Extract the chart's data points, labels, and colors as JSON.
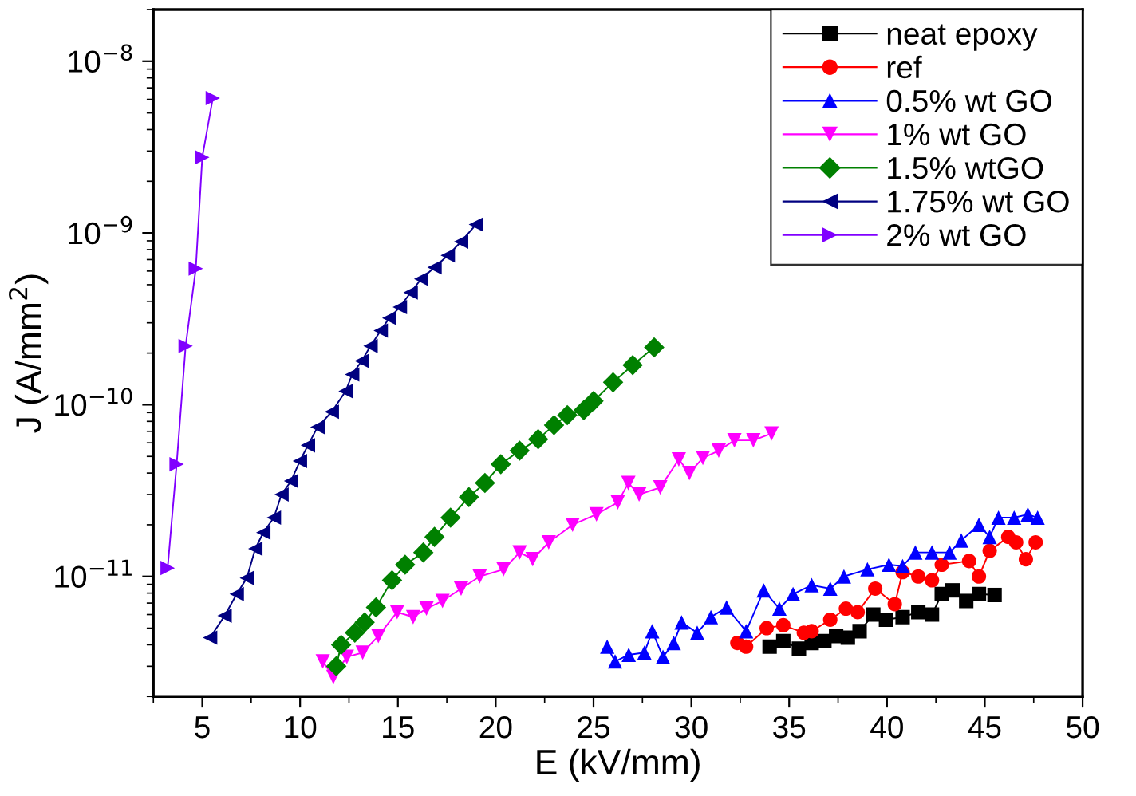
{
  "chart_data": {
    "type": "line",
    "xlabel": "E (kV/mm)",
    "ylabel": "J (A/mm$^{2}$)",
    "log": "y",
    "xlim": [
      2.5,
      50
    ],
    "ylim": [
      2e-12,
      2e-08
    ],
    "xticks": [
      5,
      10,
      15,
      20,
      25,
      30,
      35,
      40,
      45,
      50
    ],
    "yticks": [
      {
        "value": 1e-11,
        "label": "10$^{−11}$"
      },
      {
        "value": 1e-10,
        "label": "10$^{−10}$"
      },
      {
        "value": 1e-09,
        "label": "10$^{−9}$"
      },
      {
        "value": 1e-08,
        "label": "10$^{−8}$"
      }
    ],
    "grid": false,
    "legend": "top right",
    "line_style": "solid",
    "series": [
      {
        "name": "neat epoxy",
        "color": "#000000",
        "marker": "square",
        "x": [
          34.0,
          34.7,
          35.5,
          36.15,
          36.8,
          37.4,
          38.0,
          38.6,
          39.3,
          39.95,
          40.8,
          41.6,
          42.3,
          42.8,
          43.35,
          44.05,
          44.7,
          45.5
        ],
        "values": [
          3.9e-12,
          4.2e-12,
          3.8e-12,
          4.1e-12,
          4.2e-12,
          4.5e-12,
          4.4e-12,
          4.8e-12,
          6e-12,
          5.6e-12,
          5.8e-12,
          6.2e-12,
          6e-12,
          7.9e-12,
          8.3e-12,
          7.2e-12,
          7.9e-12,
          7.8e-12
        ]
      },
      {
        "name": "ref",
        "color": "#ff0000",
        "marker": "circle",
        "x": [
          32.35,
          32.8,
          33.85,
          34.7,
          35.75,
          36.15,
          37.1,
          37.9,
          38.5,
          39.4,
          40.4,
          40.8,
          41.6,
          42.3,
          42.8,
          44.2,
          44.7,
          45.25,
          46.2,
          46.6,
          47.1,
          47.6
        ],
        "values": [
          4.1e-12,
          3.9e-12,
          5e-12,
          5.2e-12,
          4.7e-12,
          4.8e-12,
          5.6e-12,
          6.5e-12,
          6.2e-12,
          8.5e-12,
          6.9e-12,
          1.06e-11,
          1e-11,
          9.5e-12,
          1.17e-11,
          1.23e-11,
          1e-11,
          1.41e-11,
          1.7e-11,
          1.58e-11,
          1.26e-11,
          1.58e-11
        ]
      },
      {
        "name": "0.5% wt GO",
        "color": "#0000ff",
        "marker": "triangle",
        "x": [
          25.7,
          26.1,
          26.8,
          27.6,
          28.0,
          28.55,
          29.1,
          29.5,
          30.3,
          31.0,
          31.8,
          32.8,
          33.7,
          34.5,
          35.2,
          36.15,
          37.1,
          37.8,
          39.0,
          40.1,
          40.8,
          41.45,
          42.3,
          43.2,
          43.8,
          44.7,
          45.25,
          45.7,
          46.5,
          47.2,
          47.7
        ],
        "values": [
          3.9e-12,
          3.2e-12,
          3.5e-12,
          3.6e-12,
          4.8e-12,
          3.4e-12,
          4.1e-12,
          5.4e-12,
          4.7e-12,
          5.8e-12,
          6.6e-12,
          4.8e-12,
          8.3e-12,
          6.5e-12,
          7.9e-12,
          8.9e-12,
          8.5e-12,
          1e-11,
          1.1e-11,
          1.17e-11,
          1.15e-11,
          1.38e-11,
          1.38e-11,
          1.38e-11,
          1.62e-11,
          2e-11,
          1.7e-11,
          2.2e-11,
          2.2e-11,
          2.3e-11,
          2.2e-11
        ]
      },
      {
        "name": "1% wt GO",
        "color": "#ff00ff",
        "marker": "triangle-down",
        "x": [
          11.16,
          11.7,
          12.39,
          13.2,
          14.0,
          14.96,
          15.78,
          16.46,
          17.28,
          18.23,
          19.18,
          20.4,
          21.22,
          21.89,
          22.71,
          23.93,
          25.15,
          26.24,
          26.78,
          27.33,
          28.41,
          29.36,
          29.9,
          30.59,
          31.4,
          32.2,
          33.17,
          34.1
        ],
        "values": [
          3.2e-12,
          2.6e-12,
          3.4e-12,
          3.6e-12,
          4.5e-12,
          6.2e-12,
          5.8e-12,
          6.5e-12,
          7.2e-12,
          8.5e-12,
          1e-11,
          1.1e-11,
          1.38e-11,
          1.26e-11,
          1.58e-11,
          2e-11,
          2.3e-11,
          2.7e-11,
          3.5e-11,
          3e-11,
          3.3e-11,
          4.8e-11,
          4e-11,
          4.9e-11,
          5.4e-11,
          6.2e-11,
          6.2e-11,
          6.8e-11
        ]
      },
      {
        "name": "1.5% wtGO",
        "color": "#008000",
        "marker": "diamond",
        "x": [
          11.85,
          12.1,
          12.8,
          13.3,
          13.88,
          14.7,
          15.37,
          16.3,
          16.87,
          17.69,
          18.63,
          19.45,
          20.26,
          21.22,
          22.17,
          22.98,
          23.66,
          24.5,
          25.0,
          26.0,
          27.0,
          28.1
        ],
        "values": [
          3e-12,
          4e-12,
          4.7e-12,
          5.4e-12,
          6.6e-12,
          9.5e-12,
          1.17e-11,
          1.38e-11,
          1.7e-11,
          2.2e-11,
          2.9e-11,
          3.5e-11,
          4.5e-11,
          5.4e-11,
          6.3e-11,
          7.6e-11,
          8.7e-11,
          9.3e-11,
          1.05e-10,
          1.35e-10,
          1.7e-10,
          2.16e-10
        ]
      },
      {
        "name": "1.75% wt GO",
        "color": "#000080",
        "marker": "triangle-left",
        "x": [
          5.4,
          6.14,
          6.76,
          7.28,
          7.71,
          8.12,
          8.66,
          9.05,
          9.54,
          9.99,
          10.4,
          10.89,
          11.62,
          12.33,
          12.66,
          13.15,
          13.6,
          14.12,
          14.56,
          15.1,
          15.65,
          16.19,
          16.87,
          17.55,
          18.23,
          18.99
        ],
        "values": [
          4.4e-12,
          5.9e-12,
          7.9e-12,
          9.8e-12,
          1.45e-11,
          1.8e-11,
          2.2e-11,
          3e-11,
          3.6e-11,
          4.7e-11,
          5.8e-11,
          7.4e-11,
          9.1e-11,
          1.2e-10,
          1.5e-10,
          1.8e-10,
          2.2e-10,
          2.7e-10,
          3.2e-10,
          3.7e-10,
          4.5e-10,
          5.4e-10,
          6.3e-10,
          7.4e-10,
          8.9e-10,
          1.12e-09
        ]
      },
      {
        "name": "2% wt GO",
        "color": "#8000ff",
        "marker": "triangle-right",
        "x": [
          3.23,
          3.69,
          4.15,
          4.67,
          5.0,
          5.54
        ],
        "values": [
          1.12e-11,
          4.5e-11,
          2.2e-10,
          6.2e-10,
          2.76e-09,
          6.1e-09
        ]
      }
    ]
  }
}
